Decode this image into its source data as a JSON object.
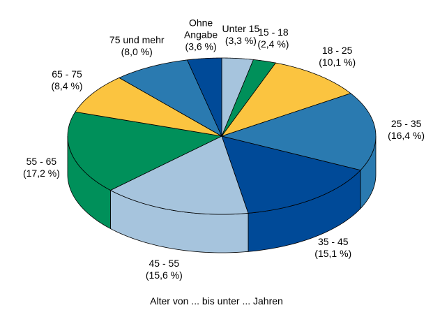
{
  "chart_data": {
    "type": "pie3d",
    "title": "Alter von ... bis unter ... Jahren",
    "categories": [
      "Unter 15",
      "15 - 18",
      "18 - 25",
      "25 - 35",
      "35 - 45",
      "45 - 55",
      "55 - 65",
      "65 - 75",
      "75 und mehr",
      "Ohne Angabe"
    ],
    "values": [
      3.3,
      2.4,
      10.1,
      16.4,
      15.1,
      15.6,
      17.2,
      8.4,
      8.0,
      3.6
    ],
    "value_labels": [
      "(3,3 %)",
      "(2,4 %)",
      "(10,1 %)",
      "(16,4 %)",
      "(15,1 %)",
      "(15,6 %)",
      "(17,2 %)",
      "(8,4 %)",
      "(8,0 %)",
      "(3,6 %)"
    ],
    "colors": [
      "#a6c4dd",
      "#00905a",
      "#fbc440",
      "#2a7ab0",
      "#004a98",
      "#a6c4dd",
      "#00905a",
      "#fbc440",
      "#2a7ab0",
      "#004a98"
    ]
  }
}
